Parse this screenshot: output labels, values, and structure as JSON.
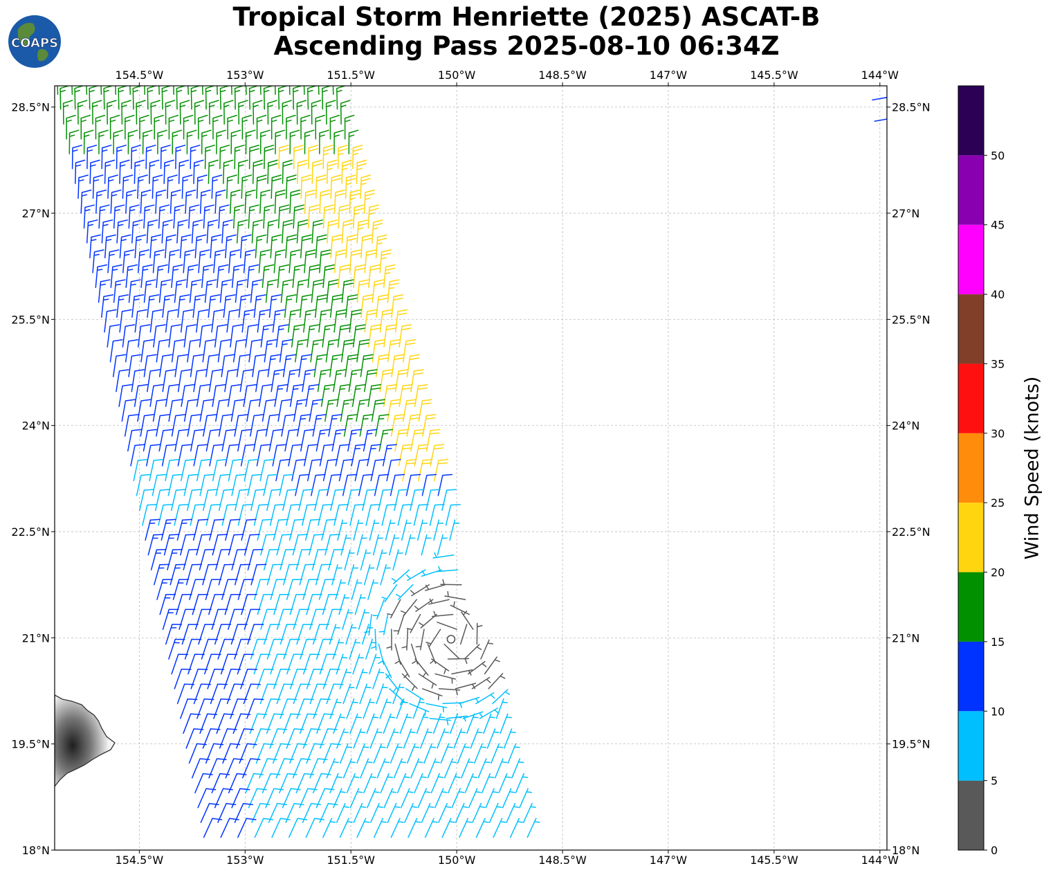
{
  "title": {
    "line1": "Tropical Storm Henriette (2025) ASCAT-B",
    "line2": "Ascending Pass 2025-08-10 06:34Z"
  },
  "logo": {
    "text": "COAPS",
    "colors": {
      "ocean": "#1a5aa8",
      "land": "#5a8a3a"
    }
  },
  "map": {
    "lon_range": [
      -155.7,
      -143.9
    ],
    "lat_range": [
      18.0,
      28.8
    ],
    "lon_ticks": [
      {
        "value": -154.5,
        "label": "154.5°W"
      },
      {
        "value": -153.0,
        "label": "153°W"
      },
      {
        "value": -151.5,
        "label": "151.5°W"
      },
      {
        "value": -150.0,
        "label": "150°W"
      },
      {
        "value": -148.5,
        "label": "148.5°W"
      },
      {
        "value": -147.0,
        "label": "147°W"
      },
      {
        "value": -145.5,
        "label": "145.5°W"
      },
      {
        "value": -144.0,
        "label": "144°W"
      }
    ],
    "lat_ticks": [
      {
        "value": 28.5,
        "label": "28.5°N"
      },
      {
        "value": 27.0,
        "label": "27°N"
      },
      {
        "value": 25.5,
        "label": "25.5°N"
      },
      {
        "value": 24.0,
        "label": "24°N"
      },
      {
        "value": 22.5,
        "label": "22.5°N"
      },
      {
        "value": 21.0,
        "label": "21°N"
      },
      {
        "value": 19.5,
        "label": "19.5°N"
      },
      {
        "value": 18.0,
        "label": "18°N"
      }
    ],
    "storm_center": {
      "lon": -150.08,
      "lat": 20.98
    },
    "swath": {
      "west_edge": [
        [
          -155.68,
          28.8
        ],
        [
          -153.55,
          18.0
        ]
      ],
      "east_edge": [
        [
          -151.78,
          28.8
        ],
        [
          -148.95,
          18.0
        ]
      ],
      "far_east_edge": [
        [
          -143.99,
          28.8
        ],
        [
          -143.8,
          27.0
        ]
      ]
    },
    "grid": true
  },
  "colorbar": {
    "label": "Wind Speed (knots)",
    "min": 0,
    "max": 55,
    "bins": [
      {
        "from": 0,
        "to": 5,
        "color": "#595959"
      },
      {
        "from": 5,
        "to": 10,
        "color": "#00bfff"
      },
      {
        "from": 10,
        "to": 15,
        "color": "#0033ff"
      },
      {
        "from": 15,
        "to": 20,
        "color": "#009000"
      },
      {
        "from": 20,
        "to": 25,
        "color": "#ffd510"
      },
      {
        "from": 25,
        "to": 30,
        "color": "#ff8c0a"
      },
      {
        "from": 30,
        "to": 35,
        "color": "#ff1010"
      },
      {
        "from": 35,
        "to": 40,
        "color": "#813f2a"
      },
      {
        "from": 40,
        "to": 45,
        "color": "#ff00ff"
      },
      {
        "from": 45,
        "to": 50,
        "color": "#8800b0"
      },
      {
        "from": 50,
        "to": 55,
        "color": "#2b0055"
      }
    ],
    "ticks": [
      {
        "value": 0,
        "label": "0"
      },
      {
        "value": 5,
        "label": "5"
      },
      {
        "value": 10,
        "label": "10"
      },
      {
        "value": 15,
        "label": "15"
      },
      {
        "value": 20,
        "label": "20"
      },
      {
        "value": 25,
        "label": "25"
      },
      {
        "value": 30,
        "label": "30"
      },
      {
        "value": 35,
        "label": "35"
      },
      {
        "value": 40,
        "label": "40"
      },
      {
        "value": 45,
        "label": "45"
      },
      {
        "value": 50,
        "label": "50"
      }
    ]
  }
}
